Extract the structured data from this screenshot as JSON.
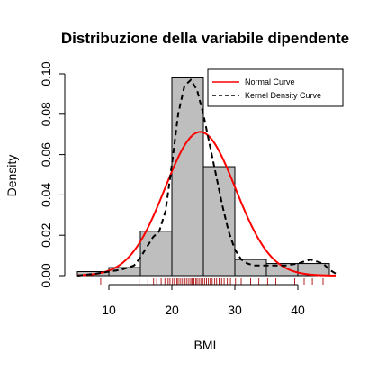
{
  "chart_data": {
    "type": "histogram",
    "title": "Distribuzione della variabile dipendente",
    "xlabel": "BMI",
    "ylabel": "Density",
    "xlim": [
      5,
      46
    ],
    "ylim": [
      0,
      0.1
    ],
    "x_ticks": [
      10,
      20,
      30,
      40
    ],
    "y_ticks": [
      0.0,
      0.02,
      0.04,
      0.06,
      0.08,
      0.1
    ],
    "y_tick_labels": [
      "0.00",
      "0.02",
      "0.04",
      "0.06",
      "0.08",
      "0.10"
    ],
    "bins": [
      {
        "x0": 5,
        "x1": 10,
        "density": 0.002
      },
      {
        "x0": 10,
        "x1": 15,
        "density": 0.004
      },
      {
        "x0": 15,
        "x1": 20,
        "density": 0.022
      },
      {
        "x0": 20,
        "x1": 25,
        "density": 0.098
      },
      {
        "x0": 25,
        "x1": 30,
        "density": 0.054
      },
      {
        "x0": 30,
        "x1": 35,
        "density": 0.008
      },
      {
        "x0": 35,
        "x1": 40,
        "density": 0.006
      },
      {
        "x0": 40,
        "x1": 45,
        "density": 0.006
      }
    ],
    "bar_color": "#bebebe",
    "normal_curve": {
      "name": "Normal Curve",
      "color": "#ff0000",
      "mean": 24.5,
      "sd": 5.6
    },
    "kde_curve": {
      "name": "Kernel Density Curve",
      "color": "#000000",
      "x": [
        5,
        8,
        10,
        12,
        14,
        15,
        16,
        17,
        18,
        19,
        20,
        21,
        22,
        23,
        24,
        25,
        26,
        27,
        28,
        29,
        30,
        31,
        32,
        33,
        34,
        36,
        38,
        40,
        41,
        42,
        43,
        44,
        45,
        46
      ],
      "y": [
        0.0,
        0.001,
        0.002,
        0.003,
        0.005,
        0.009,
        0.014,
        0.019,
        0.022,
        0.032,
        0.055,
        0.08,
        0.094,
        0.097,
        0.092,
        0.08,
        0.065,
        0.05,
        0.035,
        0.022,
        0.013,
        0.008,
        0.006,
        0.005,
        0.005,
        0.005,
        0.005,
        0.006,
        0.007,
        0.008,
        0.007,
        0.006,
        0.003,
        0.001
      ]
    },
    "rug": [
      8.7,
      14.8,
      16.2,
      17.1,
      17.6,
      18.3,
      18.9,
      19.4,
      19.7,
      20.1,
      20.4,
      20.8,
      21.0,
      21.3,
      21.6,
      21.9,
      22.1,
      22.4,
      22.7,
      23.0,
      23.2,
      23.5,
      23.8,
      24.0,
      24.3,
      24.6,
      24.9,
      25.2,
      25.5,
      25.8,
      26.1,
      26.4,
      26.8,
      27.1,
      27.5,
      27.9,
      28.3,
      28.8,
      29.3,
      30.1,
      31.0,
      32.5,
      33.8,
      35.2,
      36.5,
      39.5,
      41.0,
      42.3,
      44.0
    ],
    "rug_color": "#b22222",
    "legend_position": "top-right"
  }
}
